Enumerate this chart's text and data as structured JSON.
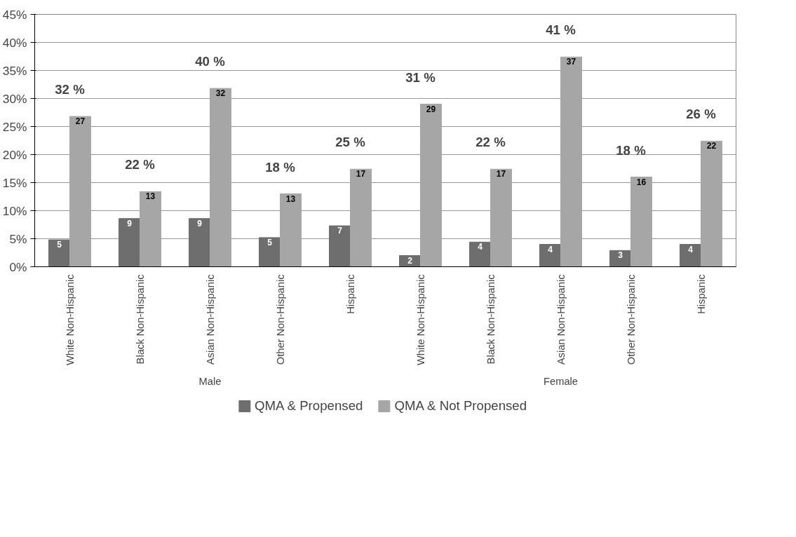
{
  "chart_data": {
    "type": "bar",
    "categories": [
      "White Non-Hispanic",
      "Black Non-Hispanic",
      "Asian Non-Hispanic",
      "Other Non-Hispanic",
      "Hispanic",
      "White Non-Hispanic",
      "Black Non-Hispanic",
      "Asian Non-Hispanic",
      "Other Non-Hispanic",
      "Hispanic"
    ],
    "series": [
      {
        "name": "QMA & Propensed",
        "color": "#6e6e6e",
        "values": [
          4.8,
          8.6,
          8.6,
          5.2,
          7.3,
          2.0,
          4.4,
          4.0,
          2.9,
          4.0
        ],
        "value_labels": [
          "5",
          "9",
          "9",
          "5",
          "7",
          "2",
          "4",
          "4",
          "3",
          "4"
        ]
      },
      {
        "name": "QMA & Not Propensed",
        "color": "#a6a6a6",
        "values": [
          26.8,
          13.4,
          31.8,
          13.0,
          17.4,
          29.0,
          17.4,
          37.4,
          16.0,
          22.4
        ],
        "value_labels": [
          "27",
          "13",
          "32",
          "13",
          "17",
          "29",
          "17",
          "37",
          "16",
          "22"
        ]
      }
    ],
    "annotations": [
      "32 %",
      "22 %",
      "40 %",
      "18 %",
      "25 %",
      "31 %",
      "22 %",
      "41 %",
      "18 %",
      "26 %",
      "Male",
      "Female"
    ],
    "ylim": [
      0,
      45
    ],
    "yticks": [
      {
        "value": 0,
        "label": "0%"
      },
      {
        "value": 5,
        "label": "5%"
      },
      {
        "value": 10,
        "label": "10%"
      },
      {
        "value": 15,
        "label": "15%"
      },
      {
        "value": 20,
        "label": "20%"
      },
      {
        "value": 25,
        "label": "25%"
      },
      {
        "value": 30,
        "label": "30%"
      },
      {
        "value": 35,
        "label": "35%"
      },
      {
        "value": 40,
        "label": "40%"
      },
      {
        "value": 45,
        "label": "45%"
      }
    ],
    "grid": "y",
    "legend": "bottom"
  }
}
